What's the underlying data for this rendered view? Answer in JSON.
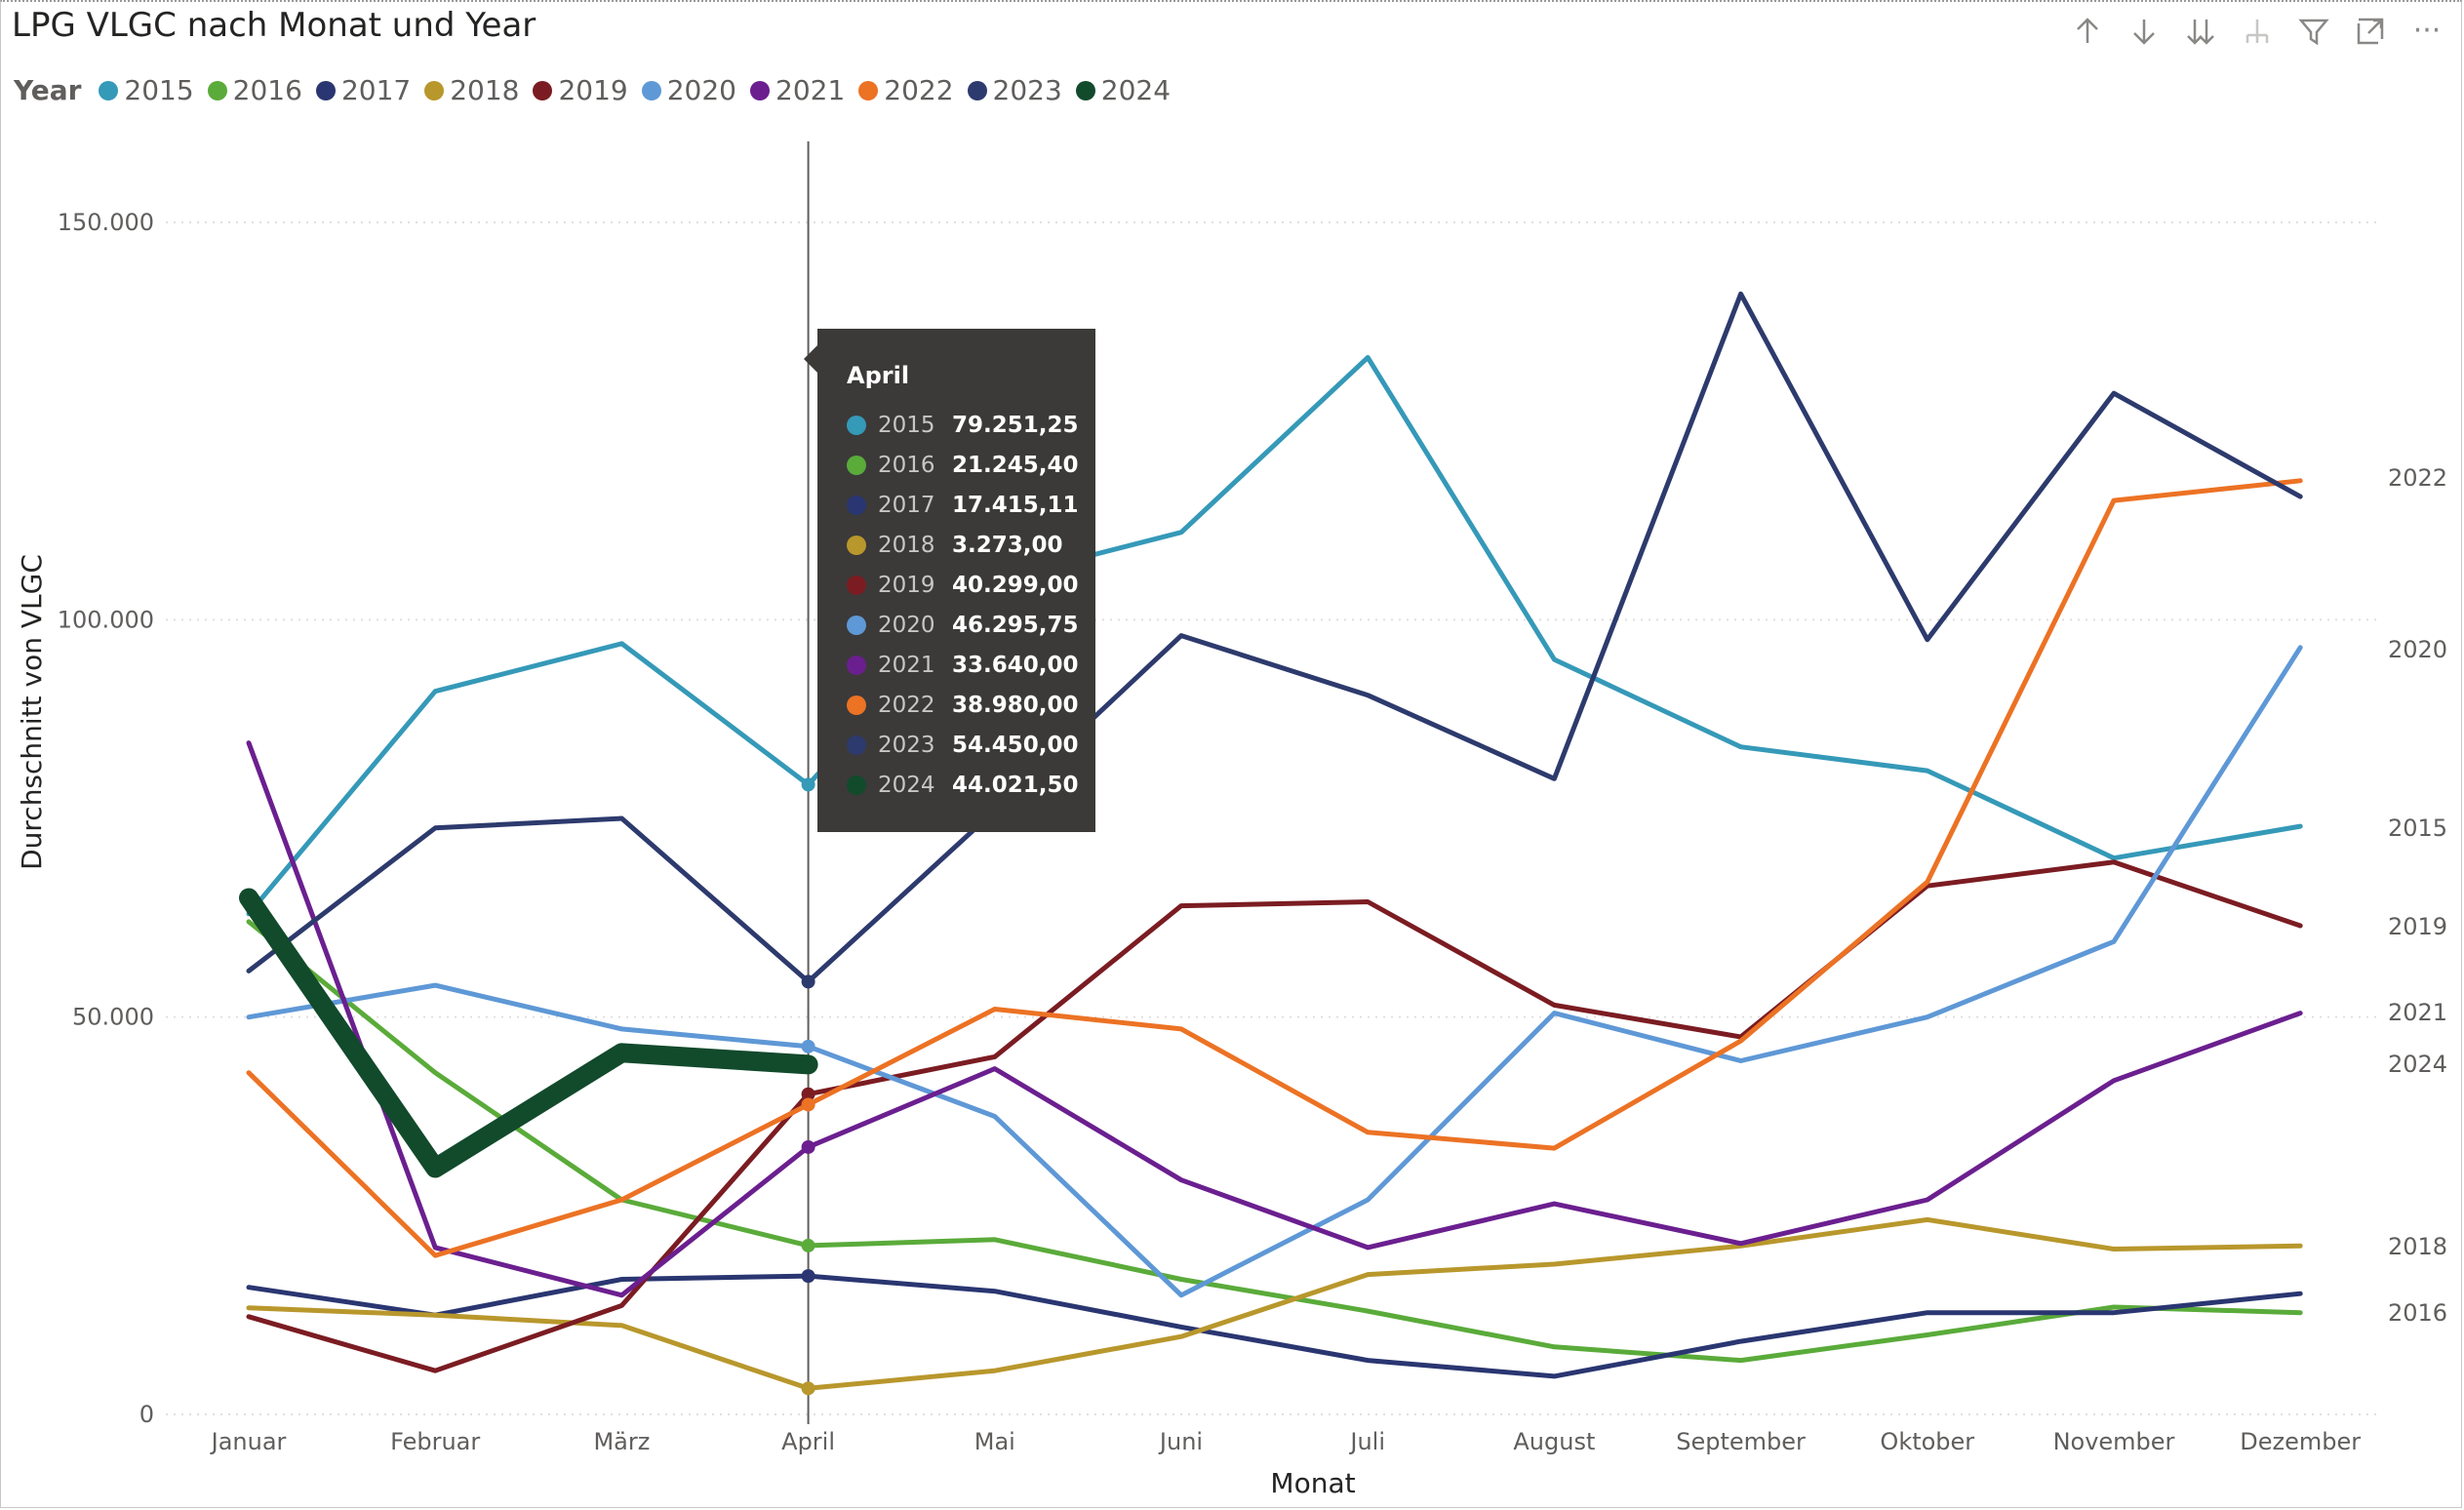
{
  "visual": {
    "title": "LPG VLGC nach Monat und Year"
  },
  "toolbar": {
    "icons": [
      "arrow-up-icon",
      "arrow-down-icon",
      "double-arrow-down-icon",
      "expand-hierarchy-icon",
      "filter-icon",
      "focus-mode-icon",
      "more-options-icon"
    ],
    "more_label": "···"
  },
  "legend": {
    "title": "Year"
  },
  "tooltip": {
    "header": "April",
    "rows": [
      {
        "year": "2015",
        "value": "79.251,25",
        "color": "#3599b8"
      },
      {
        "year": "2016",
        "value": "21.245,40",
        "color": "#5aab3a"
      },
      {
        "year": "2017",
        "value": "17.415,11",
        "color": "#2a3671"
      },
      {
        "year": "2018",
        "value": "3.273,00",
        "color": "#b8972c"
      },
      {
        "year": "2019",
        "value": "40.299,00",
        "color": "#7b1c22"
      },
      {
        "year": "2020",
        "value": "46.295,75",
        "color": "#5e98d6"
      },
      {
        "year": "2021",
        "value": "33.640,00",
        "color": "#6b1f8f"
      },
      {
        "year": "2022",
        "value": "38.980,00",
        "color": "#ec7224"
      },
      {
        "year": "2023",
        "value": "54.450,00",
        "color": "#2d3a6d"
      },
      {
        "year": "2024",
        "value": "44.021,50",
        "color": "#124a2c"
      }
    ]
  },
  "chart_data": {
    "type": "line",
    "title": "LPG VLGC nach Monat und Year",
    "xlabel": "Monat",
    "ylabel": "Durchschnitt von VLGC",
    "ylim": [
      0,
      150000
    ],
    "y_ticks": [
      "0",
      "50.000",
      "100.000",
      "150.000"
    ],
    "y_tick_values": [
      0,
      50000,
      100000,
      150000
    ],
    "grid": "horizontal dotted",
    "legend_position": "top-left",
    "hover_category": "April",
    "categories": [
      "Januar",
      "Februar",
      "März",
      "April",
      "Mai",
      "Juni",
      "Juli",
      "August",
      "September",
      "Oktober",
      "November",
      "Dezember"
    ],
    "series": [
      {
        "name": "2015",
        "color": "#3599b8",
        "values": [
          63000,
          91000,
          97000,
          79251.25,
          105000,
          111000,
          133000,
          95000,
          84000,
          81000,
          70000,
          74000
        ]
      },
      {
        "name": "2016",
        "color": "#5aab3a",
        "values": [
          62000,
          43000,
          27000,
          21245.4,
          22000,
          17000,
          13000,
          8500,
          6800,
          10000,
          13500,
          12800
        ]
      },
      {
        "name": "2017",
        "color": "#2a3671",
        "values": [
          16000,
          12500,
          17000,
          17415.11,
          15500,
          11000,
          6800,
          4800,
          9200,
          12800,
          12800,
          15200
        ]
      },
      {
        "name": "2018",
        "color": "#b8972c",
        "values": [
          13400,
          12500,
          11200,
          3273,
          5500,
          9800,
          17600,
          18900,
          21200,
          24500,
          20800,
          21200
        ]
      },
      {
        "name": "2019",
        "color": "#7b1c22",
        "values": [
          12300,
          5500,
          13700,
          40299,
          45000,
          64000,
          64500,
          51500,
          47500,
          66500,
          69500,
          61500
        ]
      },
      {
        "name": "2020",
        "color": "#5e98d6",
        "values": [
          50000,
          54000,
          48500,
          46295.75,
          37500,
          15000,
          27000,
          50500,
          44500,
          50000,
          59500,
          96500
        ]
      },
      {
        "name": "2021",
        "color": "#6b1f8f",
        "values": [
          84500,
          21000,
          15000,
          33640,
          43500,
          29500,
          21000,
          26500,
          21500,
          27000,
          42000,
          50500
        ]
      },
      {
        "name": "2022",
        "color": "#ec7224",
        "values": [
          43000,
          20000,
          27000,
          38980,
          51000,
          48500,
          35500,
          33500,
          47000,
          67000,
          115000,
          117500
        ]
      },
      {
        "name": "2023",
        "color": "#2d3a6d",
        "values": [
          55800,
          73800,
          75000,
          54450,
          76000,
          98000,
          90500,
          80000,
          141000,
          97500,
          128500,
          115500
        ]
      },
      {
        "name": "2024",
        "color": "#124a2c",
        "values": [
          65000,
          31000,
          45500,
          44021.5,
          null,
          null,
          null,
          null,
          null,
          null,
          null,
          null
        ]
      }
    ],
    "end_labels": [
      "2022",
      "2020",
      "2015",
      "2019",
      "2021",
      "2024",
      "2018",
      "2016"
    ]
  }
}
